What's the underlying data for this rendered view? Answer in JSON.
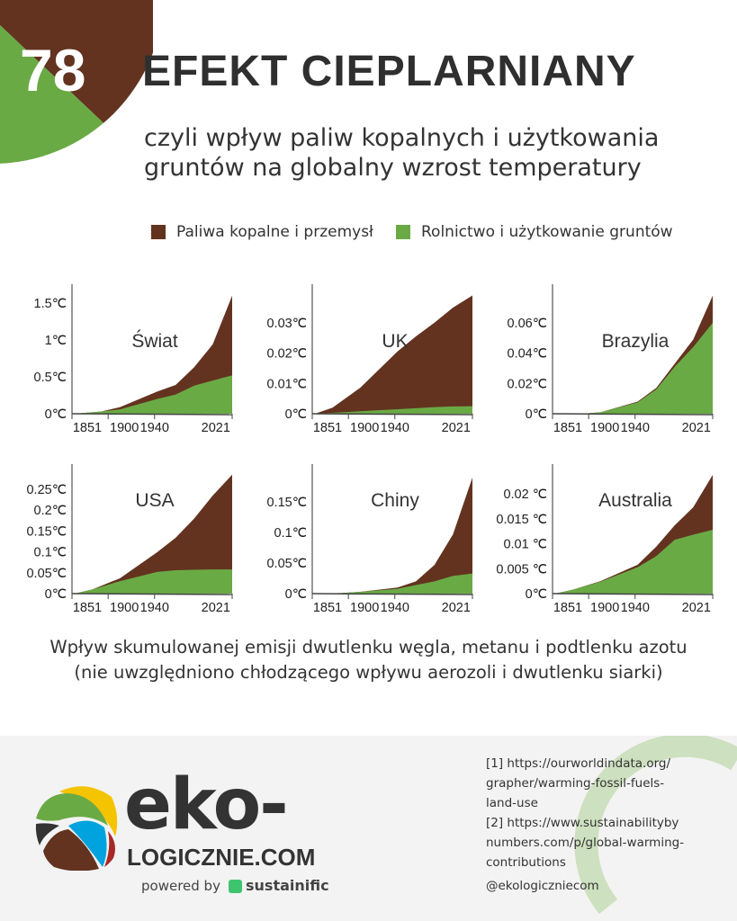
{
  "header": {
    "number": "78",
    "title": "EFEKT CIEPLARNIANY",
    "subtitle_line1": "czyli wpływ paliw kopalnych i użytkowania",
    "subtitle_line2": "gruntów na globalny wzrost temperatury"
  },
  "colors": {
    "fossil": "#633320",
    "land": "#6aaa45",
    "corner_brown": "#633320",
    "corner_green": "#6aaa45",
    "footer_bg": "#f3f3f3",
    "arc": "#cde0bf"
  },
  "legend": [
    {
      "label": "Paliwa kopalne i przemysł",
      "color": "#633320"
    },
    {
      "label": "Rolnictwo i użytkowanie gruntów",
      "color": "#6aaa45"
    }
  ],
  "chart_data": [
    {
      "type": "area",
      "stacked": true,
      "title": "Świat",
      "ylim": [
        0,
        1.73
      ],
      "yticks": [
        {
          "v": 0,
          "label": "0℃"
        },
        {
          "v": 0.5,
          "label": "0.5℃"
        },
        {
          "v": 1,
          "label": "1℃"
        },
        {
          "v": 1.5,
          "label": "1.5℃"
        }
      ],
      "xticks": [
        1851,
        1900,
        1940,
        2021
      ],
      "x": [
        1851,
        1880,
        1900,
        1940,
        1960,
        1980,
        2000,
        2021
      ],
      "series": [
        {
          "name": "Rolnictwo i użytkowanie gruntów",
          "values": [
            0,
            0.03,
            0.06,
            0.2,
            0.26,
            0.38,
            0.45,
            0.52
          ]
        },
        {
          "name": "Paliwa kopalne i przemysł",
          "values": [
            0,
            0.0,
            0.03,
            0.1,
            0.13,
            0.25,
            0.49,
            1.08
          ]
        }
      ]
    },
    {
      "type": "area",
      "stacked": true,
      "title": "UK",
      "ylim": [
        0,
        0.0421
      ],
      "yticks": [
        {
          "v": 0,
          "label": "0℃"
        },
        {
          "v": 0.01,
          "label": "0.01℃"
        },
        {
          "v": 0.02,
          "label": "0.02℃"
        },
        {
          "v": 0.03,
          "label": "0.03℃"
        }
      ],
      "xticks": [
        1851,
        1900,
        1940,
        2021
      ],
      "x": [
        1851,
        1870,
        1900,
        1940,
        1960,
        1980,
        2000,
        2021
      ],
      "series": [
        {
          "name": "Rolnictwo i użytkowanie gruntów",
          "values": [
            0,
            0.0003,
            0.0008,
            0.0015,
            0.0018,
            0.0022,
            0.0024,
            0.0025
          ]
        },
        {
          "name": "Paliwa kopalne i przemysł",
          "values": [
            0,
            0.0017,
            0.0078,
            0.019,
            0.0237,
            0.0278,
            0.0326,
            0.0365
          ]
        }
      ]
    },
    {
      "type": "area",
      "stacked": true,
      "title": "Brazylia",
      "ylim": [
        0,
        0.0843
      ],
      "yticks": [
        {
          "v": 0,
          "label": "0℃"
        },
        {
          "v": 0.02,
          "label": "0.02℃"
        },
        {
          "v": 0.04,
          "label": "0.04℃"
        },
        {
          "v": 0.06,
          "label": "0.06℃"
        }
      ],
      "xticks": [
        1851,
        1900,
        1940,
        2021
      ],
      "x": [
        1851,
        1880,
        1900,
        1940,
        1960,
        1980,
        2000,
        2021
      ],
      "series": [
        {
          "name": "Rolnictwo i użytkowanie gruntów",
          "values": [
            0,
            0,
            0.001,
            0.0075,
            0.016,
            0.031,
            0.044,
            0.06
          ]
        },
        {
          "name": "Paliwa kopalne i przemysł",
          "values": [
            0,
            0,
            0,
            0.0005,
            0.001,
            0.002,
            0.005,
            0.018
          ]
        }
      ]
    },
    {
      "type": "area",
      "stacked": true,
      "title": "USA",
      "ylim": [
        0,
        0.306
      ],
      "yticks": [
        {
          "v": 0,
          "label": "0℃"
        },
        {
          "v": 0.05,
          "label": "0.05℃"
        },
        {
          "v": 0.1,
          "label": "0.1℃"
        },
        {
          "v": 0.15,
          "label": "0.15℃"
        },
        {
          "v": 0.2,
          "label": "0.2℃"
        },
        {
          "v": 0.25,
          "label": "0.25℃"
        }
      ],
      "xticks": [
        1851,
        1900,
        1940,
        2021
      ],
      "x": [
        1851,
        1870,
        1900,
        1940,
        1960,
        1980,
        2000,
        2021
      ],
      "series": [
        {
          "name": "Rolnictwo i użytkowanie gruntów",
          "values": [
            0,
            0.01,
            0.03,
            0.052,
            0.056,
            0.057,
            0.058,
            0.058
          ]
        },
        {
          "name": "Paliwa kopalne i przemysł",
          "values": [
            0,
            0,
            0.007,
            0.047,
            0.078,
            0.123,
            0.177,
            0.227
          ]
        }
      ]
    },
    {
      "type": "area",
      "stacked": true,
      "title": "Chiny",
      "ylim": [
        0,
        0.209
      ],
      "yticks": [
        {
          "v": 0,
          "label": "0℃"
        },
        {
          "v": 0.05,
          "label": "0.05℃"
        },
        {
          "v": 0.1,
          "label": "0.1℃"
        },
        {
          "v": 0.15,
          "label": "0.15℃"
        }
      ],
      "xticks": [
        1851,
        1900,
        1940,
        2021
      ],
      "x": [
        1851,
        1880,
        1900,
        1940,
        1960,
        1980,
        2000,
        2021
      ],
      "series": [
        {
          "name": "Rolnictwo i użytkowanie gruntów",
          "values": [
            0,
            0.001,
            0.003,
            0.008,
            0.014,
            0.02,
            0.029,
            0.033
          ]
        },
        {
          "name": "Paliwa kopalne i przemysł",
          "values": [
            0,
            0,
            0,
            0.002,
            0.006,
            0.027,
            0.068,
            0.157
          ]
        }
      ]
    },
    {
      "type": "area",
      "stacked": true,
      "title": "Australia",
      "ylim": [
        0,
        0.0256
      ],
      "yticks": [
        {
          "v": 0,
          "label": "0℃"
        },
        {
          "v": 0.005,
          "label": "0.005 ℃"
        },
        {
          "v": 0.01,
          "label": "0.01 ℃"
        },
        {
          "v": 0.015,
          "label": "0.015 ℃"
        },
        {
          "v": 0.02,
          "label": "0.02 ℃"
        }
      ],
      "xticks": [
        1851,
        1900,
        1940,
        2021
      ],
      "x": [
        1851,
        1870,
        1900,
        1940,
        1960,
        1980,
        2000,
        2021
      ],
      "series": [
        {
          "name": "Rolnictwo i użytkowanie gruntów",
          "values": [
            0,
            0.0008,
            0.0024,
            0.0053,
            0.0075,
            0.0108,
            0.0118,
            0.0128
          ]
        },
        {
          "name": "Paliwa kopalne i przemysł",
          "values": [
            0,
            0,
            0.0001,
            0.0005,
            0.0019,
            0.0029,
            0.0055,
            0.011
          ]
        }
      ]
    }
  ],
  "caption": {
    "line1": "Wpływ skumulowanej emisji dwutlenku węgla, metanu i podtlenku azotu",
    "line2": "(nie uwzględniono chłodzącego wpływu aerozoli i dwutlenku siarki)"
  },
  "footer": {
    "logo_top": "eko-",
    "logo_bottom": "LOGICZNIE.COM",
    "powered_by": "powered by",
    "partner": "sustainific",
    "refs": [
      "[1] https://ourworldindata.org/",
      "grapher/warming-fossil-fuels-",
      "land-use",
      "[2] https://www.sustainabilityby",
      "numbers.com/p/global-warming-",
      "contributions"
    ],
    "handle": "@ekologiczniecom"
  }
}
